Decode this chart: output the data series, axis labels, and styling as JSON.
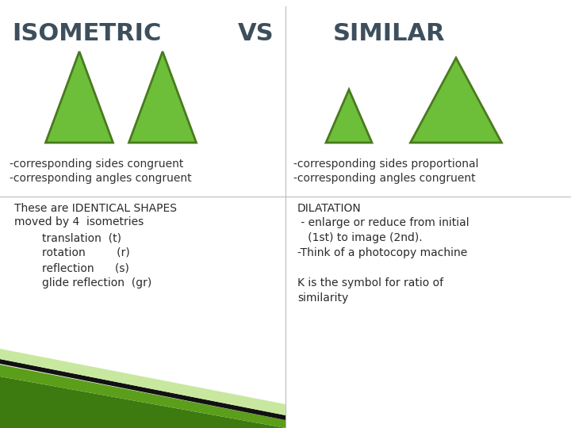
{
  "bg_color": "#ffffff",
  "title_isometric": "ISOMETRIC",
  "title_vs": "VS",
  "title_similar": "SIMILAR",
  "title_color": "#3d4f5c",
  "triangle_fill": "#6dbf3a",
  "triangle_edge": "#4a7a1e",
  "left_bullets": [
    "-corresponding sides congruent",
    "-corresponding angles congruent"
  ],
  "right_bullets": [
    "-corresponding sides proportional",
    "-corresponding angles congruent"
  ],
  "left_body_line1": "These are IDENTICAL SHAPES",
  "left_body_line2": "moved by 4  isometries",
  "left_body_indent": [
    "        translation  (t)",
    "        rotation         (r)",
    "        reflection      (s)",
    "        glide reflection  (gr)"
  ],
  "right_body_lines": [
    "DILATATION",
    " - enlarge or reduce from initial",
    "   (1st) to image (2nd).",
    "-Think of a photocopy machine",
    "",
    "K is the symbol for ratio of",
    "similarity"
  ],
  "divider_color": "#bbbbbb",
  "green_dark": "#3d7a10",
  "green_mid": "#5a9e1a",
  "green_light": "#c8e8a0",
  "black_stripe": "#111111"
}
